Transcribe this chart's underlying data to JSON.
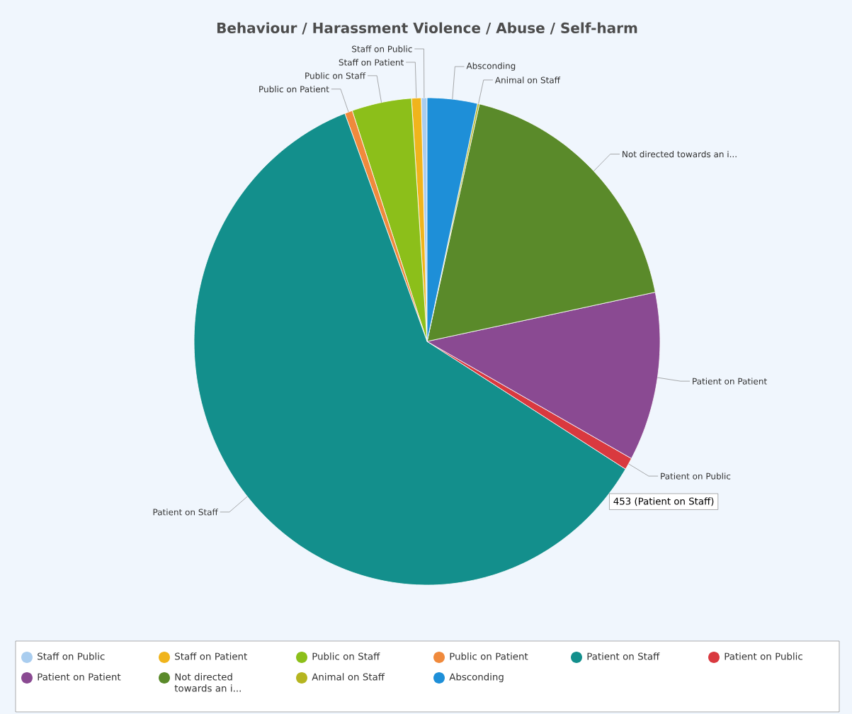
{
  "chart_data": {
    "type": "pie",
    "title": "Behaviour / Harassment Violence / Abuse / Self-harm",
    "categories": [
      "Staff on Public",
      "Staff on Patient",
      "Public on Staff",
      "Public on Patient",
      "Patient on Staff",
      "Patient on Public",
      "Patient on Patient",
      "Not directed towards an i...",
      "Animal on Staff",
      "Absconding"
    ],
    "values": [
      3,
      5,
      31,
      4,
      453,
      6,
      84,
      136,
      1,
      26
    ],
    "colors": [
      "#a9cdef",
      "#f0b41c",
      "#8cbf1a",
      "#f08a3c",
      "#138f8c",
      "#d9393f",
      "#8a4a92",
      "#5a8a2a",
      "#b5b520",
      "#1e8fd8"
    ],
    "value_labels": [
      null,
      null,
      null,
      null,
      "453 (Patient on Staff)",
      null,
      null,
      null,
      null,
      null
    ],
    "legend": "bottom"
  }
}
